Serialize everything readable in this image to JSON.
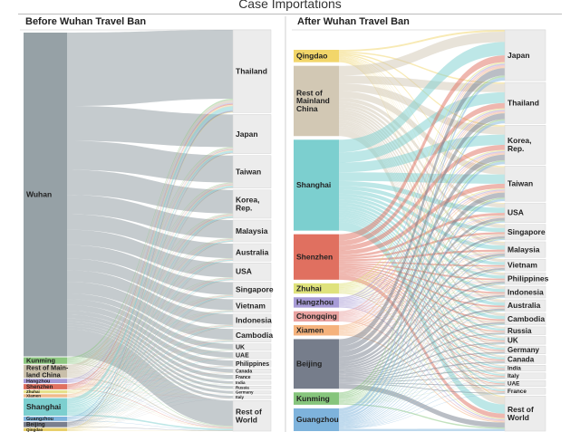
{
  "title": "Case Importations",
  "panels": [
    {
      "title": "Before Wuhan Travel Ban",
      "sources": [
        {
          "label": "Wuhan",
          "value": 74,
          "color": "#96a1a6"
        },
        {
          "label": "Kunming",
          "value": 1.5,
          "color": "#8cc77f"
        },
        {
          "label": "Rest of Main-\nland China",
          "value": 3,
          "color": "#c9bfaa"
        },
        {
          "label": "Hangzhou",
          "value": 1,
          "color": "#a79bd6"
        },
        {
          "label": "Shenzhen",
          "value": 1.2,
          "color": "#e07060"
        },
        {
          "label": "Zhuhai",
          "value": 0.7,
          "color": "#e6e08a"
        },
        {
          "label": "Xiamen",
          "value": 0.7,
          "color": "#f0b98a"
        },
        {
          "label": "Shanghai",
          "value": 4,
          "color": "#7ccfcf"
        },
        {
          "label": "Guangzhou",
          "value": 1,
          "color": "#7eb3dc"
        },
        {
          "label": "Beijing",
          "value": 1.2,
          "color": "#7a7f8e"
        },
        {
          "label": "Qingdao",
          "value": 0.7,
          "color": "#e8cf6a"
        }
      ],
      "destinations": [
        {
          "label": "Thailand",
          "value": 19
        },
        {
          "label": "Japan",
          "value": 9
        },
        {
          "label": "Taiwan",
          "value": 7.5
        },
        {
          "label": "Korea,\nRep.",
          "value": 6.5
        },
        {
          "label": "Malaysia",
          "value": 5
        },
        {
          "label": "Australia",
          "value": 4
        },
        {
          "label": "USA",
          "value": 4
        },
        {
          "label": "Singapore",
          "value": 3.5
        },
        {
          "label": "Vietnam",
          "value": 3
        },
        {
          "label": "Indonesia",
          "value": 3
        },
        {
          "label": "Cambodia",
          "value": 3
        },
        {
          "label": "UK",
          "value": 1.5
        },
        {
          "label": "UAE",
          "value": 1.5
        },
        {
          "label": "Philippines",
          "value": 1.5
        },
        {
          "label": "Canada",
          "value": 1
        },
        {
          "label": "France",
          "value": 1
        },
        {
          "label": "India",
          "value": 0.7
        },
        {
          "label": "Russia",
          "value": 0.7
        },
        {
          "label": "Germany",
          "value": 0.7
        },
        {
          "label": "Italy",
          "value": 0.7
        },
        {
          "label": "Rest of\nWorld",
          "value": 7
        }
      ]
    },
    {
      "title": "After Wuhan Travel Ban",
      "sources": [
        {
          "label": "Qingdao",
          "value": 3,
          "color": "#f2d66a"
        },
        {
          "label": "Rest of\nMainland\nChina",
          "value": 17,
          "color": "#d2c8b4"
        },
        {
          "label": "Shanghai",
          "value": 22,
          "color": "#7ccfcf"
        },
        {
          "label": "Shenzhen",
          "value": 11,
          "color": "#e07060"
        },
        {
          "label": "Zhuhai",
          "value": 2.5,
          "color": "#dfe27c"
        },
        {
          "label": "Hangzhou",
          "value": 2.5,
          "color": "#a79bd6"
        },
        {
          "label": "Chongqing",
          "value": 2.5,
          "color": "#e9a2a0"
        },
        {
          "label": "Xiamen",
          "value": 2.5,
          "color": "#f5b27c"
        },
        {
          "label": "Beijing",
          "value": 12,
          "color": "#767d8b"
        },
        {
          "label": "Kunming",
          "value": 3,
          "color": "#86c57c"
        },
        {
          "label": "Guangzhou",
          "value": 5.5,
          "color": "#7eb3dc"
        }
      ],
      "destinations": [
        {
          "label": "Japan",
          "value": 13
        },
        {
          "label": "Thailand",
          "value": 10.5
        },
        {
          "label": "Korea,\nRep.",
          "value": 10
        },
        {
          "label": "Taiwan",
          "value": 9
        },
        {
          "label": "USA",
          "value": 5
        },
        {
          "label": "Singapore",
          "value": 4
        },
        {
          "label": "Malaysia",
          "value": 4
        },
        {
          "label": "Vietnam",
          "value": 3
        },
        {
          "label": "Philippines",
          "value": 3
        },
        {
          "label": "Indonesia",
          "value": 3
        },
        {
          "label": "Australia",
          "value": 3
        },
        {
          "label": "Cambodia",
          "value": 3
        },
        {
          "label": "Russia",
          "value": 2
        },
        {
          "label": "UK",
          "value": 2
        },
        {
          "label": "Germany",
          "value": 2
        },
        {
          "label": "Canada",
          "value": 2
        },
        {
          "label": "India",
          "value": 1.5
        },
        {
          "label": "Italy",
          "value": 1.5
        },
        {
          "label": "UAE",
          "value": 1.5
        },
        {
          "label": "France",
          "value": 1.5
        },
        {
          "label": "Rest of\nWorld",
          "value": 9
        }
      ]
    }
  ]
}
